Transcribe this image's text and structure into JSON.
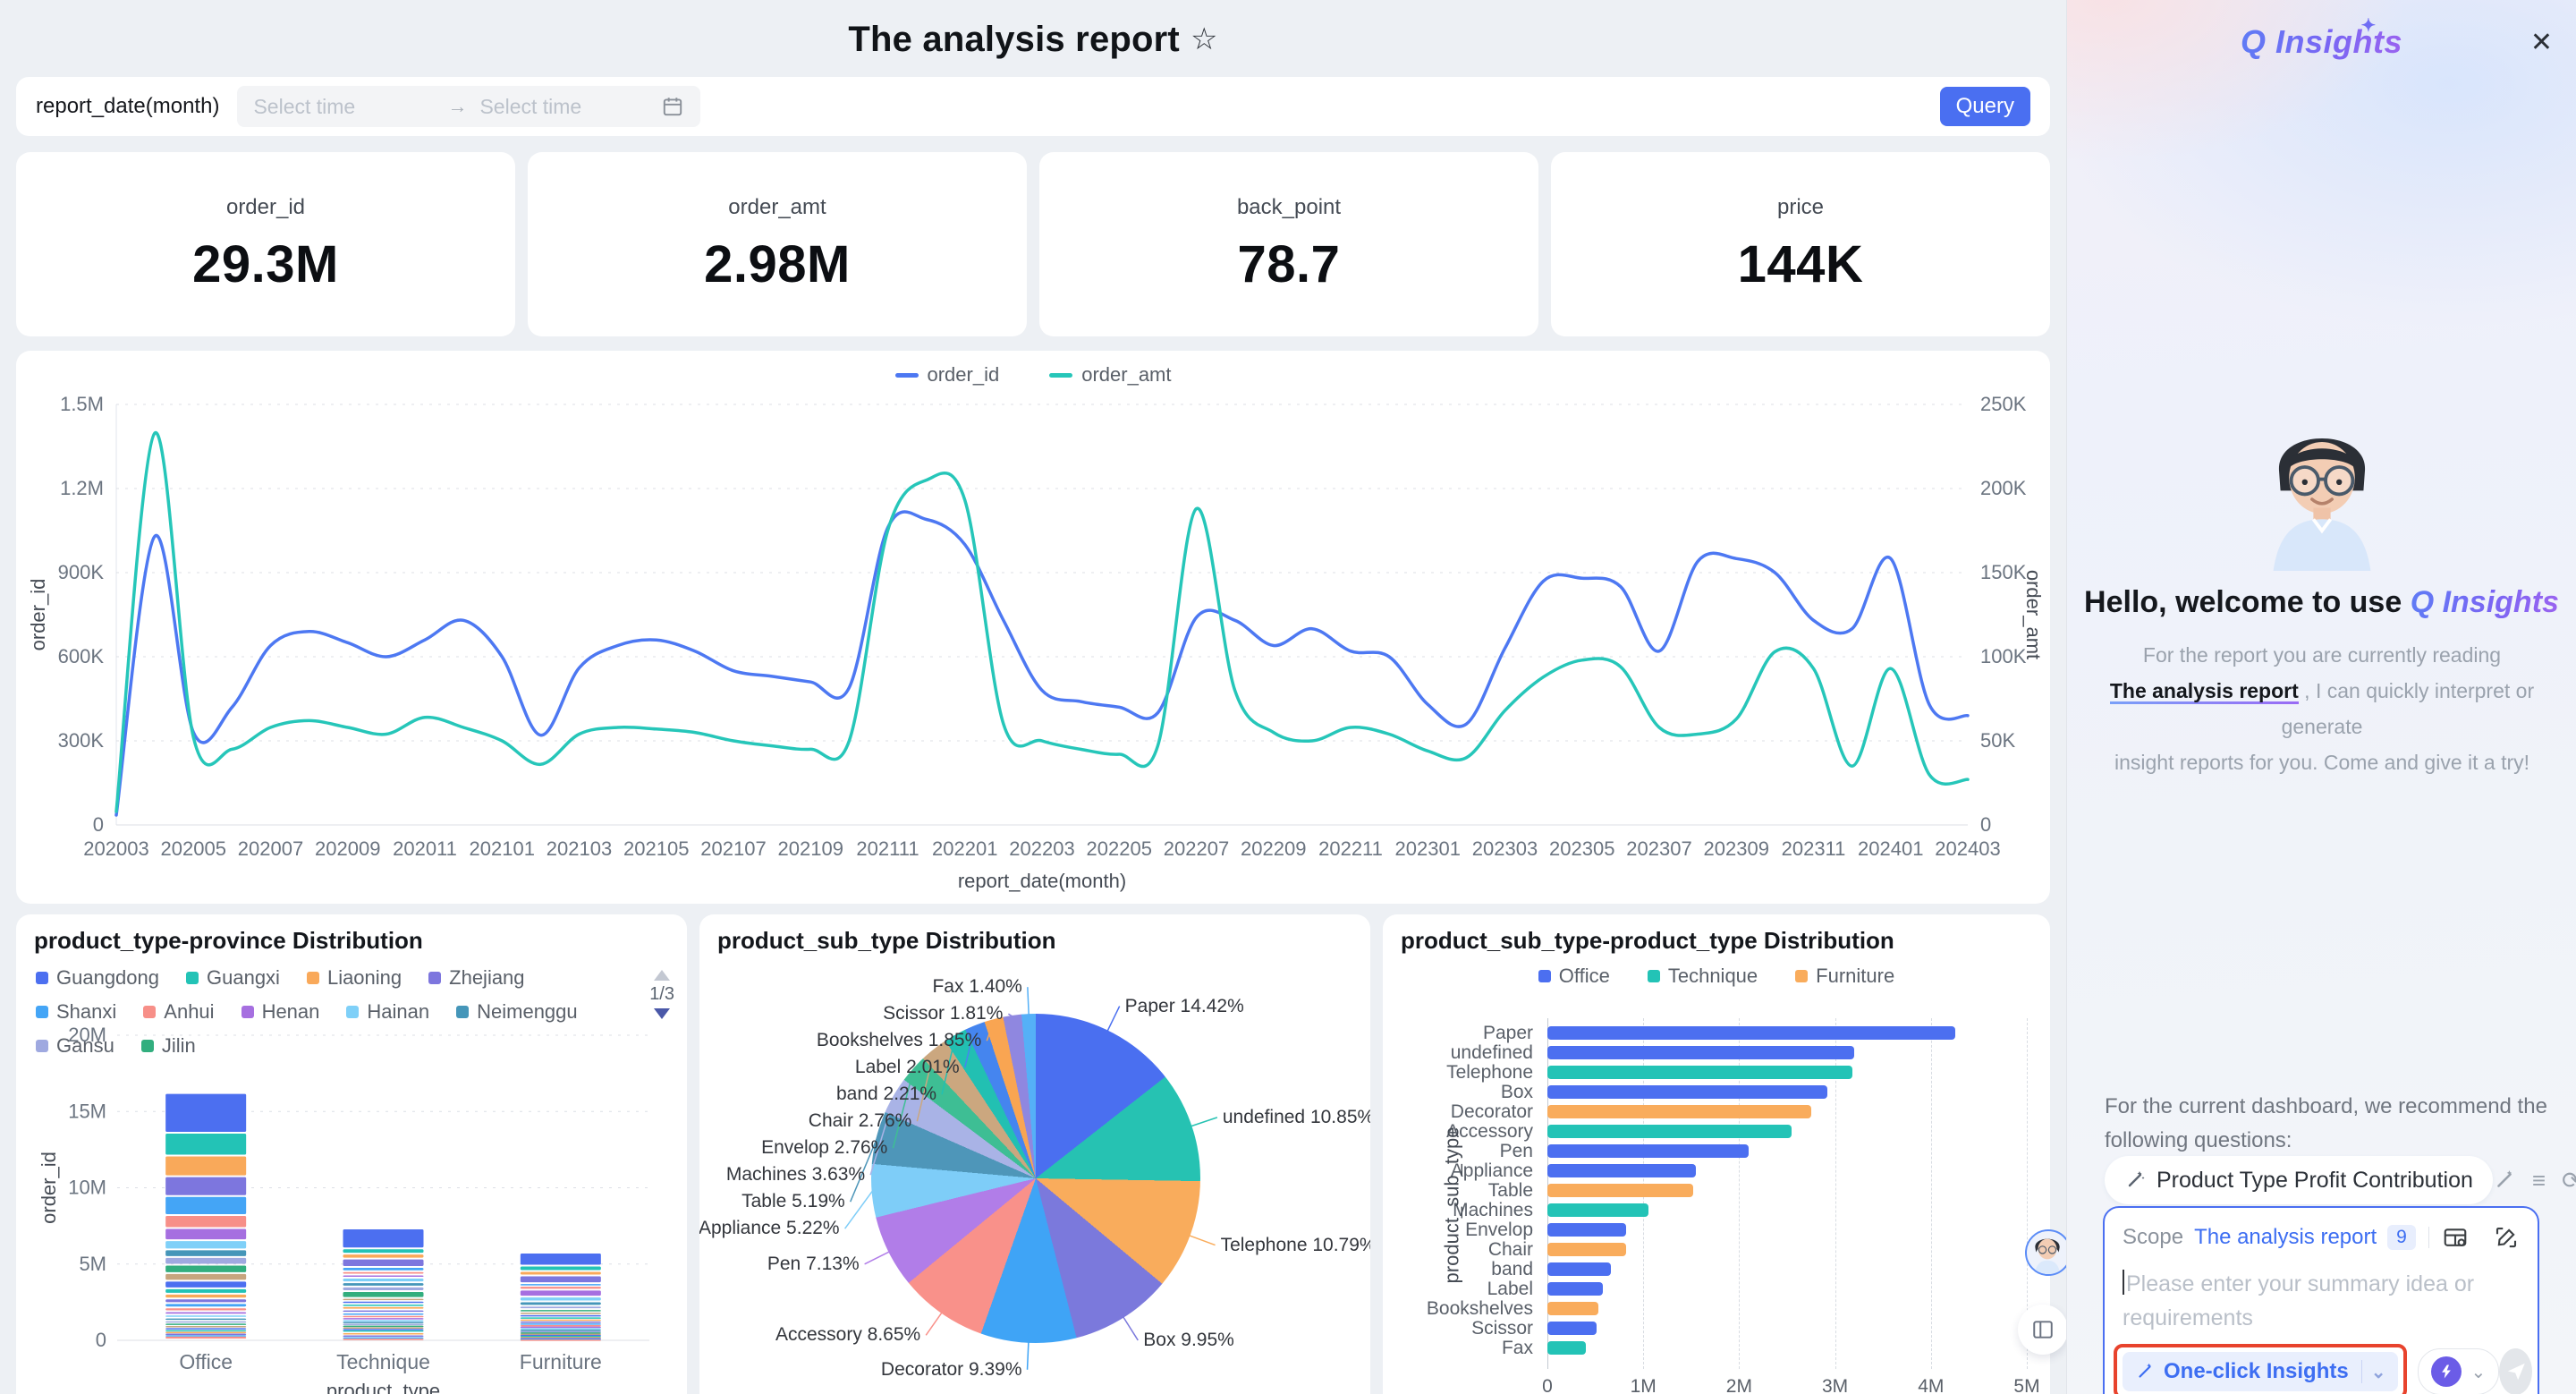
{
  "header": {
    "title": "The analysis report"
  },
  "filter_bar": {
    "label": "report_date(month)",
    "start_placeholder": "Select time",
    "end_placeholder": "Select time",
    "query_label": "Query"
  },
  "kpi_cards": [
    {
      "label": "order_id",
      "value": "29.3M"
    },
    {
      "label": "order_amt",
      "value": "2.98M"
    },
    {
      "label": "back_point",
      "value": "78.7"
    },
    {
      "label": "price",
      "value": "144K"
    }
  ],
  "chart_data": [
    {
      "id": "trend",
      "type": "line",
      "legend_position": "top",
      "grid": true,
      "xlabel": "report_date(month)",
      "x": [
        "202003",
        "202004",
        "202005",
        "202006",
        "202007",
        "202008",
        "202009",
        "202010",
        "202011",
        "202012",
        "202101",
        "202102",
        "202103",
        "202104",
        "202105",
        "202106",
        "202107",
        "202108",
        "202109",
        "202110",
        "202111",
        "202112",
        "202201",
        "202202",
        "202203",
        "202204",
        "202205",
        "202206",
        "202207",
        "202208",
        "202209",
        "202210",
        "202211",
        "202212",
        "202301",
        "202302",
        "202303",
        "202304",
        "202305",
        "202306",
        "202307",
        "202308",
        "202309",
        "202310",
        "202311",
        "202312",
        "202401",
        "202402",
        "202403"
      ],
      "x_tick_step": 2,
      "y_left": {
        "label": "order_id",
        "ticks": [
          "0",
          "300K",
          "600K",
          "900K",
          "1.2M",
          "1.5M"
        ],
        "max_k": 1500
      },
      "y_right": {
        "label": "order_amt",
        "ticks": [
          "0",
          "50K",
          "100K",
          "150K",
          "200K",
          "250K"
        ],
        "max_k": 250
      },
      "series": [
        {
          "name": "order_id",
          "axis": "left",
          "color": "#4D78F2",
          "values_k": [
            35,
            1030,
            330,
            420,
            640,
            690,
            650,
            600,
            660,
            730,
            600,
            320,
            560,
            640,
            660,
            620,
            550,
            530,
            510,
            490,
            1060,
            1090,
            1000,
            730,
            480,
            440,
            420,
            400,
            740,
            730,
            640,
            700,
            620,
            600,
            430,
            360,
            630,
            870,
            880,
            850,
            620,
            940,
            950,
            900,
            730,
            700,
            950,
            430,
            390
          ]
        },
        {
          "name": "order_amt",
          "axis": "right",
          "color": "#26C6B9",
          "values_k": [
            8,
            233,
            52,
            45,
            58,
            62,
            58,
            54,
            64,
            58,
            50,
            36,
            54,
            58,
            57,
            55,
            50,
            47,
            45,
            50,
            175,
            205,
            193,
            60,
            50,
            45,
            42,
            47,
            188,
            80,
            55,
            50,
            58,
            54,
            44,
            40,
            68,
            88,
            98,
            94,
            58,
            54,
            63,
            103,
            93,
            35,
            93,
            30,
            27
          ]
        }
      ]
    },
    {
      "id": "province",
      "type": "bar",
      "stacked": true,
      "title": "product_type-province Distribution",
      "pagination": "1/3",
      "categories": [
        "Office",
        "Technique",
        "Furniture"
      ],
      "legend": [
        {
          "name": "Guangdong",
          "color": "#4C6FF0"
        },
        {
          "name": "Guangxi",
          "color": "#23C3B6"
        },
        {
          "name": "Liaoning",
          "color": "#F9A95A"
        },
        {
          "name": "Zhejiang",
          "color": "#7D76DE"
        },
        {
          "name": "Shanxi",
          "color": "#44A5F6"
        },
        {
          "name": "Anhui",
          "color": "#F78F88"
        },
        {
          "name": "Henan",
          "color": "#A66FE0"
        },
        {
          "name": "Hainan",
          "color": "#7FD0F8"
        },
        {
          "name": "Neimenggu",
          "color": "#4596B9"
        },
        {
          "name": "Gansu",
          "color": "#9FA9E0"
        },
        {
          "name": "Jilin",
          "color": "#32AE7E"
        }
      ],
      "segment_palette": [
        "#4C6FF0",
        "#23C3B6",
        "#F9A95A",
        "#7D76DE",
        "#44A5F6",
        "#F78F88",
        "#A66FE0",
        "#7FD0F8",
        "#4596B9",
        "#9FA9E0",
        "#32AE7E",
        "#C7A57E"
      ],
      "ylabel": "order_id",
      "xlabel": "product_type",
      "y_ticks": [
        "0",
        "5M",
        "10M",
        "15M",
        "20M"
      ],
      "ymax_m": 20,
      "stacks_m": [
        [
          2.6,
          1.5,
          1.35,
          1.3,
          1.25,
          0.85,
          0.8,
          0.6,
          0.5,
          0.5,
          0.55,
          0.5,
          0.5,
          0.35,
          0.32,
          0.3,
          0.28,
          0.25,
          0.22,
          0.2,
          0.18,
          0.16,
          0.15,
          0.14,
          0.13,
          0.12,
          0.11,
          0.1,
          0.1,
          0.24
        ],
        [
          1.3,
          0.35,
          0.32,
          0.55,
          0.28,
          0.22,
          0.2,
          0.3,
          0.28,
          0.3,
          0.45,
          0.18,
          0.2,
          0.16,
          0.22,
          0.2,
          0.16,
          0.14,
          0.14,
          0.12,
          0.12,
          0.12,
          0.11,
          0.1,
          0.1,
          0.18,
          0.15,
          0.12,
          0.1,
          0.1
        ],
        [
          0.85,
          0.35,
          0.3,
          0.5,
          0.18,
          0.25,
          0.45,
          0.32,
          0.28,
          0.22,
          0.18,
          0.16,
          0.15,
          0.14,
          0.13,
          0.12,
          0.11,
          0.1,
          0.1,
          0.1,
          0.09,
          0.09,
          0.08,
          0.08,
          0.07,
          0.07,
          0.06,
          0.06,
          0.05,
          0.05
        ]
      ]
    },
    {
      "id": "subtype_pie",
      "type": "pie",
      "title": "product_sub_type Distribution",
      "slices": [
        {
          "name": "Paper",
          "pct": 14.42,
          "color": "#4A6FF0"
        },
        {
          "name": "undefined",
          "pct": 10.85,
          "color": "#26C2B2"
        },
        {
          "name": "Telephone",
          "pct": 10.79,
          "color": "#F9AC5C"
        },
        {
          "name": "Box",
          "pct": 9.95,
          "color": "#7B79DC"
        },
        {
          "name": "Decorator",
          "pct": 9.39,
          "color": "#3FA4F6"
        },
        {
          "name": "Accessory",
          "pct": 8.65,
          "color": "#F9918A"
        },
        {
          "name": "Pen",
          "pct": 7.13,
          "color": "#B17DE8"
        },
        {
          "name": "Appliance",
          "pct": 5.22,
          "color": "#7ECDF8"
        },
        {
          "name": "Table",
          "pct": 5.19,
          "color": "#4E96B9"
        },
        {
          "name": "Machines",
          "pct": 3.63,
          "color": "#A9B3E6"
        },
        {
          "name": "Envelop",
          "pct": 2.76,
          "color": "#3EBE94"
        },
        {
          "name": "Chair",
          "pct": 2.76,
          "color": "#CBA77F"
        },
        {
          "name": "band",
          "pct": 2.21,
          "color": "#22C0B2"
        },
        {
          "name": "Label",
          "pct": 2.01,
          "color": "#4585EF"
        },
        {
          "name": "Bookshelves",
          "pct": 1.85,
          "color": "#F9A552"
        },
        {
          "name": "Scissor",
          "pct": 1.81,
          "color": "#8F87E0"
        },
        {
          "name": "Fax",
          "pct": 1.4,
          "color": "#55B0F7"
        }
      ]
    },
    {
      "id": "subtype_type",
      "type": "bar",
      "orientation": "horizontal",
      "title": "product_sub_type-product_type Distribution",
      "legend": [
        {
          "name": "Office",
          "color": "#4C6FF0"
        },
        {
          "name": "Technique",
          "color": "#23C3B6"
        },
        {
          "name": "Furniture",
          "color": "#F9AC5C"
        }
      ],
      "xlabel": "order_id",
      "ylabel": "product_sub_type",
      "x_ticks": [
        "0",
        "1M",
        "2M",
        "3M",
        "4M",
        "5M"
      ],
      "xmax_m": 5,
      "rows": [
        {
          "name": "Paper",
          "value_m": 4.25,
          "type": "Office"
        },
        {
          "name": "undefined",
          "value_m": 3.2,
          "type": "Office"
        },
        {
          "name": "Telephone",
          "value_m": 3.18,
          "type": "Technique"
        },
        {
          "name": "Box",
          "value_m": 2.92,
          "type": "Office"
        },
        {
          "name": "Decorator",
          "value_m": 2.75,
          "type": "Furniture"
        },
        {
          "name": "Accessory",
          "value_m": 2.55,
          "type": "Technique"
        },
        {
          "name": "Pen",
          "value_m": 2.1,
          "type": "Office"
        },
        {
          "name": "Appliance",
          "value_m": 1.55,
          "type": "Office"
        },
        {
          "name": "Table",
          "value_m": 1.52,
          "type": "Furniture"
        },
        {
          "name": "Machines",
          "value_m": 1.05,
          "type": "Technique"
        },
        {
          "name": "Envelop",
          "value_m": 0.82,
          "type": "Office"
        },
        {
          "name": "Chair",
          "value_m": 0.82,
          "type": "Furniture"
        },
        {
          "name": "band",
          "value_m": 0.66,
          "type": "Office"
        },
        {
          "name": "Label",
          "value_m": 0.58,
          "type": "Office"
        },
        {
          "name": "Bookshelves",
          "value_m": 0.53,
          "type": "Furniture"
        },
        {
          "name": "Scissor",
          "value_m": 0.51,
          "type": "Office"
        },
        {
          "name": "Fax",
          "value_m": 0.4,
          "type": "Technique"
        }
      ]
    }
  ],
  "insights_panel": {
    "logo": "Q Insights",
    "close_icon": "✕",
    "welcome_prefix": "Hello, welcome to use ",
    "welcome_brand": "Q Insights",
    "desc_line1": "For the report you are currently reading",
    "desc_link": "The analysis report",
    "desc_line2": " , I can quickly interpret or generate",
    "desc_line3": "insight reports for you. Come and give it a try!",
    "recommend_text": "For the current dashboard, we recommend the following questions:",
    "question_pill": "Product Type Profit Contribution",
    "scope_label": "Scope",
    "scope_value": "The analysis report",
    "scope_count": "9",
    "input_placeholder": "Please enter your summary idea or requirements",
    "one_click_label": "One-click Insights"
  }
}
